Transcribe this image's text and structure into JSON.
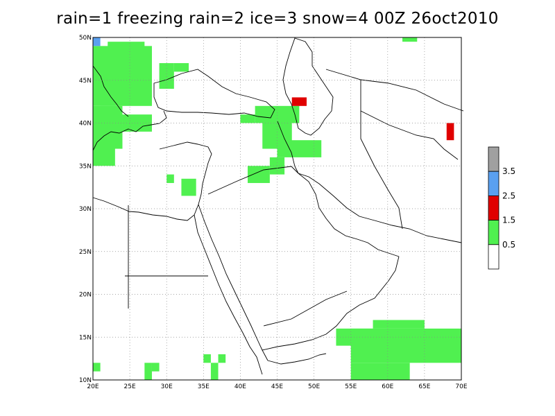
{
  "title": "rain=1  freezing rain=2  ice=3  snow=4  00Z 26oct2010",
  "lat_labels": [
    "50N",
    "45N",
    "40N",
    "35N",
    "30N",
    "25N",
    "20N",
    "15N",
    "10N"
  ],
  "lat_values": [
    50,
    45,
    40,
    35,
    30,
    25,
    20,
    15,
    10
  ],
  "lon_labels": [
    "20E",
    "25E",
    "30E",
    "35E",
    "40E",
    "45E",
    "50E",
    "55E",
    "60E",
    "65E",
    "70E"
  ],
  "lon_values": [
    20,
    25,
    30,
    35,
    40,
    45,
    50,
    55,
    60,
    65,
    70
  ],
  "extent": {
    "lon": [
      20,
      70
    ],
    "lat": [
      10,
      50
    ]
  },
  "grid": "dotted",
  "colors": {
    "rain": "#50f050",
    "freezing_rain": "#e00000",
    "ice": "#5aa0f0",
    "snow": "#a0a0a0",
    "coast": "#000000"
  },
  "colorbar": {
    "labels": [
      "3.5",
      "2.5",
      "1.5",
      "0.5"
    ],
    "bins": [
      {
        "color": "#a0a0a0",
        "category": "snow"
      },
      {
        "color": "#5aa0f0",
        "category": "ice"
      },
      {
        "color": "#e00000",
        "category": "freezing rain"
      },
      {
        "color": "#50f050",
        "category": "rain"
      },
      {
        "color": "#ffffff",
        "category": "none"
      }
    ]
  },
  "precip_cells": [
    {
      "lon": [
        20,
        28
      ],
      "lat": [
        42,
        49
      ],
      "type": "rain"
    },
    {
      "lon": [
        20,
        23
      ],
      "lat": [
        35,
        42
      ],
      "type": "rain"
    },
    {
      "lon": [
        21,
        24
      ],
      "lat": [
        37,
        42
      ],
      "type": "rain"
    },
    {
      "lon": [
        24,
        28
      ],
      "lat": [
        39,
        41
      ],
      "type": "rain"
    },
    {
      "lon": [
        22,
        27
      ],
      "lat": [
        48,
        49.5
      ],
      "type": "rain"
    },
    {
      "lon": [
        29,
        31
      ],
      "lat": [
        44,
        47
      ],
      "type": "rain"
    },
    {
      "lon": [
        31,
        33
      ],
      "lat": [
        46,
        47
      ],
      "type": "rain"
    },
    {
      "lon": [
        30,
        31
      ],
      "lat": [
        33,
        34
      ],
      "type": "rain"
    },
    {
      "lon": [
        32,
        34
      ],
      "lat": [
        31.5,
        33.5
      ],
      "type": "rain"
    },
    {
      "lon": [
        40,
        42
      ],
      "lat": [
        40,
        41
      ],
      "type": "rain"
    },
    {
      "lon": [
        42,
        48
      ],
      "lat": [
        40,
        42
      ],
      "type": "rain"
    },
    {
      "lon": [
        43,
        47
      ],
      "lat": [
        37,
        40
      ],
      "type": "rain"
    },
    {
      "lon": [
        45,
        51
      ],
      "lat": [
        36,
        38
      ],
      "type": "rain"
    },
    {
      "lon": [
        41,
        44
      ],
      "lat": [
        33,
        35
      ],
      "type": "rain"
    },
    {
      "lon": [
        44,
        46
      ],
      "lat": [
        34,
        36
      ],
      "type": "rain"
    },
    {
      "lon": [
        47,
        49
      ],
      "lat": [
        42,
        43
      ],
      "type": "freezing_rain"
    },
    {
      "lon": [
        68,
        69
      ],
      "lat": [
        38,
        40
      ],
      "type": "freezing_rain"
    },
    {
      "lon": [
        20,
        21
      ],
      "lat": [
        49,
        50
      ],
      "type": "ice"
    },
    {
      "lon": [
        62,
        64
      ],
      "lat": [
        49.5,
        50
      ],
      "type": "rain"
    },
    {
      "lon": [
        55,
        70
      ],
      "lat": [
        12,
        16
      ],
      "type": "rain"
    },
    {
      "lon": [
        58,
        65
      ],
      "lat": [
        16,
        17
      ],
      "type": "rain"
    },
    {
      "lon": [
        53,
        58
      ],
      "lat": [
        14,
        16
      ],
      "type": "rain"
    },
    {
      "lon": [
        55,
        63
      ],
      "lat": [
        10,
        12
      ],
      "type": "rain"
    },
    {
      "lon": [
        27,
        28
      ],
      "lat": [
        10,
        12
      ],
      "type": "rain"
    },
    {
      "lon": [
        20,
        21
      ],
      "lat": [
        11,
        12
      ],
      "type": "rain"
    },
    {
      "lon": [
        28,
        29
      ],
      "lat": [
        11,
        12
      ],
      "type": "rain"
    },
    {
      "lon": [
        37,
        38
      ],
      "lat": [
        12,
        13
      ],
      "type": "rain"
    },
    {
      "lon": [
        36,
        37
      ],
      "lat": [
        10,
        12
      ],
      "type": "rain"
    },
    {
      "lon": [
        35,
        36
      ],
      "lat": [
        12,
        13
      ],
      "type": "rain"
    }
  ]
}
